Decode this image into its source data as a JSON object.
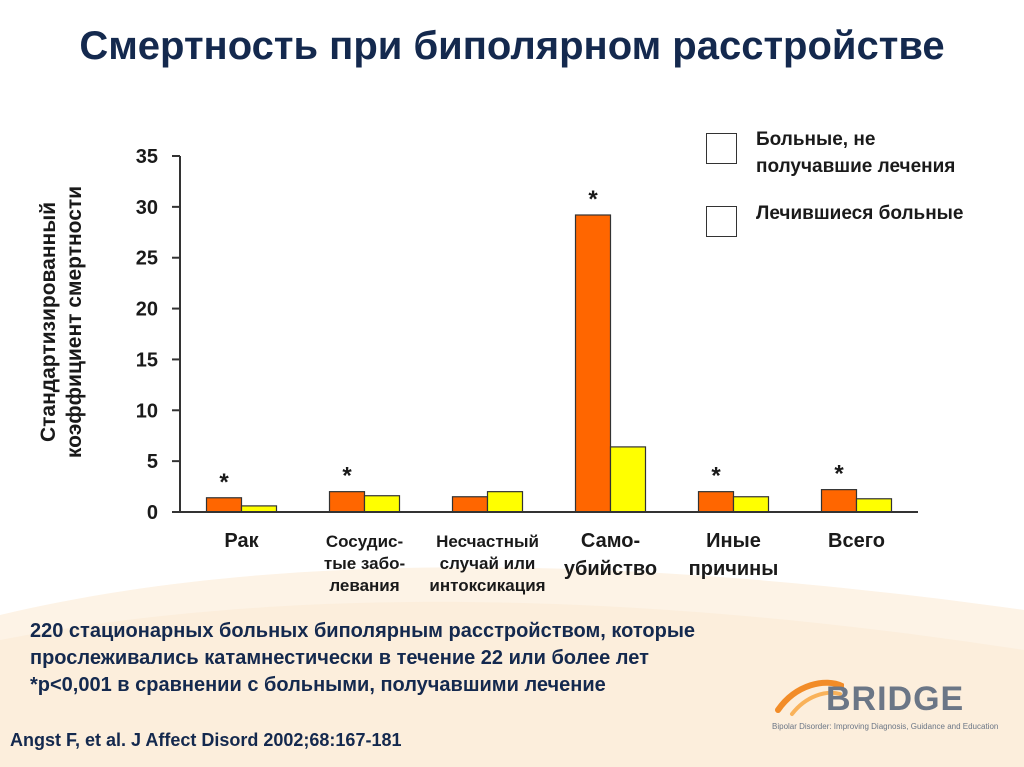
{
  "slide": {
    "title": "Смертность при биполярном расстройстве",
    "footnote_lines": [
      "220 стационарных больных биполярным расстройством, которые",
      "прослеживались катамнестически в течение 22 или более лет",
      "*p<0,001 в сравнении с больными, получавшими лечение"
    ],
    "citation": "Angst F, et al. J Affect Disord 2002;68:167-181",
    "logo": {
      "wordmark": "BRIDGE",
      "tagline": "Bipolar Disorder: Improving Diagnosis, Guidance and Education"
    }
  },
  "chart_data": {
    "type": "bar",
    "title": "Смертность при биполярном расстройстве",
    "ylabel_lines": [
      "Стандартизированный",
      "коэффициент смертности"
    ],
    "xlabel": "",
    "ylim": [
      0,
      35
    ],
    "yticks": [
      0,
      5,
      10,
      15,
      20,
      25,
      30,
      35
    ],
    "categories": [
      "Рак",
      "Сосудис-\nтые забо-\nлевания",
      "Несчастный\nслучай или\nинтоксикация",
      "Само-\nубийство",
      "Иные\nпричины",
      "Всего"
    ],
    "series": [
      {
        "name": "Больные, не\nполучавшие лечения",
        "color": "#ff6600",
        "values": [
          1.4,
          2.0,
          1.5,
          29.2,
          2.0,
          2.2
        ]
      },
      {
        "name": "Лечившиеся больные",
        "color": "#ffff00",
        "values": [
          0.6,
          1.6,
          2.0,
          6.4,
          1.5,
          1.3
        ]
      }
    ],
    "significance": [
      "*",
      "*",
      "",
      "*",
      "*",
      "*"
    ],
    "legend_position": "top-right",
    "grid": false
  }
}
